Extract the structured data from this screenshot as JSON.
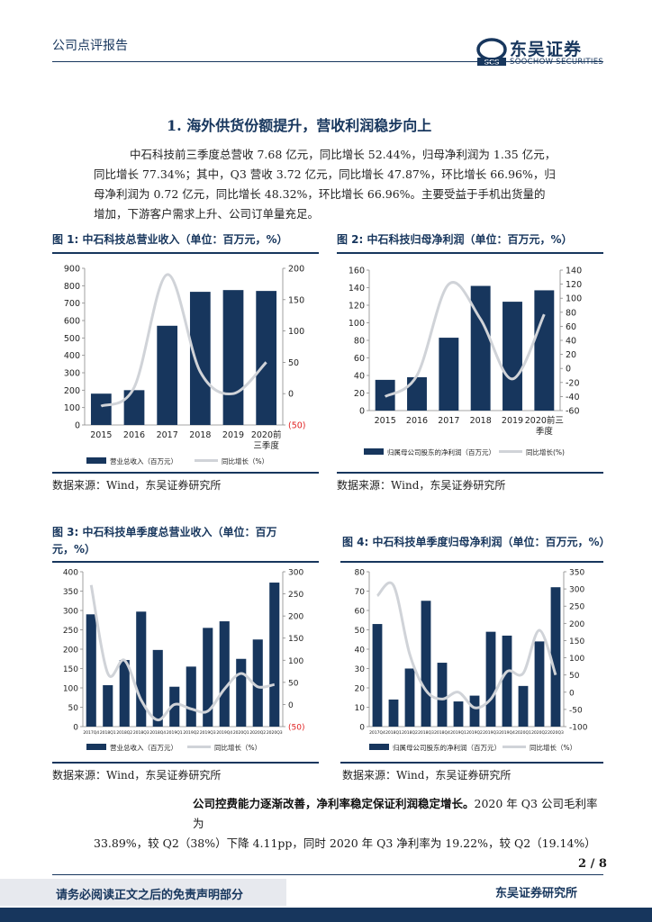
{
  "header": {
    "report_type": "公司点评报告",
    "logo_cn": "东吴证券",
    "logo_en": "SOOCHOW SECURITIES",
    "logo_mark": "SCS"
  },
  "section": {
    "title": "1.  海外供货份额提升，营收利润稳步向上",
    "paragraph": [
      "中石科技前三季度总营收 7.68 亿元，同比增长 52.44%，归母净利润为 1.35 亿元，",
      "同比增长 77.34%；其中，Q3 营收 3.72 亿元，同比增长 47.87%，环比增长 66.96%，归",
      "母净利润为 0.72 亿元，同比增长 48.32%，环比增长 66.96%。主要受益于手机出货量的",
      "增加，下游客户需求上升、公司订单量充足。"
    ]
  },
  "figures": [
    {
      "title_line1": "图 1:  中石科技总营业收入（单位：百万元，%）",
      "title_line2": "",
      "source": "数据来源：Wind，东吴证券研究所"
    },
    {
      "title_line1": "图 2:  中石科技归母净利润（单位：百万元，%）",
      "title_line2": "",
      "source": "数据来源：Wind，东吴证券研究所"
    },
    {
      "title_line1": "图 3:  中石科技单季度总营业收入（单位：百万",
      "title_line2": "元，%）",
      "source": "数据来源：Wind，东吴证券研究所"
    },
    {
      "title_line1": "图 4:  中石科技单季度归母净利润（单位：百万元，%）",
      "title_line2": "",
      "source": "数据来源：Wind，东吴证券研究所"
    }
  ],
  "chart_data": [
    {
      "type": "bar",
      "title": "中石科技总营业收入（单位：百万元，%）",
      "categories": [
        "2015",
        "2016",
        "2017",
        "2018",
        "2019",
        "2020前三季度"
      ],
      "category_labels": [
        [
          "2015"
        ],
        [
          "2016"
        ],
        [
          "2017"
        ],
        [
          "2018"
        ],
        [
          "2019"
        ],
        [
          "2020前",
          "三季度"
        ]
      ],
      "series": [
        {
          "name": "营业总收入（百万元）",
          "axis": "left",
          "type": "bar",
          "values": [
            180,
            200,
            570,
            765,
            775,
            770
          ]
        },
        {
          "name": "同比增长（%）",
          "axis": "right",
          "type": "line",
          "values": [
            -20,
            10,
            190,
            35,
            0,
            50
          ]
        }
      ],
      "left_axis": {
        "min": 0,
        "max": 900,
        "ticks": [
          0,
          100,
          200,
          300,
          400,
          500,
          600,
          700,
          800,
          900
        ],
        "labels": [
          "0",
          "100",
          "200",
          "300",
          "400",
          "500",
          "600",
          "700",
          "800",
          "900"
        ]
      },
      "right_axis": {
        "min": -50,
        "max": 200,
        "ticks": [
          -50,
          0,
          50,
          100,
          150,
          200
        ],
        "labels": [
          "(50)",
          "0",
          "50",
          "100",
          "150",
          "200"
        ],
        "red_ticks": [
          -50
        ]
      },
      "legend": [
        "营业总收入（百万元）",
        "同比增长（%）"
      ]
    },
    {
      "type": "bar",
      "title": "中石科技归母净利润（单位：百万元，%）",
      "categories": [
        "2015",
        "2016",
        "2017",
        "2018",
        "2019",
        "2020前三季度"
      ],
      "category_labels": [
        [
          "2015"
        ],
        [
          "2016"
        ],
        [
          "2017"
        ],
        [
          "2018"
        ],
        [
          "2019"
        ],
        [
          "2020前三",
          "季度"
        ]
      ],
      "series": [
        {
          "name": "归属母公司股东的净利润（百万元）",
          "axis": "left",
          "type": "bar",
          "values": [
            35,
            38,
            83,
            142,
            124,
            137
          ]
        },
        {
          "name": "同比增长(%)",
          "axis": "right",
          "type": "line",
          "values": [
            -40,
            -10,
            120,
            70,
            -15,
            77
          ]
        }
      ],
      "left_axis": {
        "min": 0,
        "max": 160,
        "ticks": [
          0,
          20,
          40,
          60,
          80,
          100,
          120,
          140,
          160
        ],
        "labels": [
          "0",
          "20",
          "40",
          "60",
          "80",
          "100",
          "120",
          "140",
          "160"
        ]
      },
      "right_axis": {
        "min": -60,
        "max": 140,
        "ticks": [
          -60,
          -40,
          -20,
          0,
          20,
          40,
          60,
          80,
          100,
          120,
          140
        ],
        "labels": [
          "-60",
          "-40",
          "-20",
          "0",
          "20",
          "40",
          "60",
          "80",
          "100",
          "120",
          "140"
        ],
        "red_ticks": []
      },
      "legend": [
        "归属母公司股东的净利润（百万元）",
        "同比增长(%)"
      ]
    },
    {
      "type": "bar",
      "title": "中石科技单季度总营业收入（单位：百万元，%）",
      "categories": [
        "2017Q4",
        "2018Q1",
        "2018Q2",
        "2018Q3",
        "2018Q4",
        "2019Q1",
        "2019Q2",
        "2019Q3",
        "2019Q4",
        "2020Q1",
        "2020Q2",
        "2020Q3"
      ],
      "category_labels": [
        [
          "2017Q4"
        ],
        [
          "2018Q1"
        ],
        [
          "2018Q2"
        ],
        [
          "2018Q3"
        ],
        [
          "2018Q4"
        ],
        [
          "2019Q1"
        ],
        [
          "2019Q2"
        ],
        [
          "2019Q3"
        ],
        [
          "2019Q4"
        ],
        [
          "2020Q1"
        ],
        [
          "2020Q2"
        ],
        [
          "2020Q3"
        ]
      ],
      "series": [
        {
          "name": "营业总收入（百万元）",
          "axis": "left",
          "type": "bar",
          "values": [
            290,
            107,
            172,
            297,
            198,
            103,
            155,
            255,
            272,
            175,
            225,
            372
          ]
        },
        {
          "name": "同比增长（%）",
          "axis": "right",
          "type": "line",
          "values": [
            270,
            70,
            100,
            10,
            -35,
            0,
            -10,
            -15,
            35,
            70,
            40,
            45
          ]
        }
      ],
      "left_axis": {
        "min": 0,
        "max": 400,
        "ticks": [
          0,
          50,
          100,
          150,
          200,
          250,
          300,
          350,
          400
        ],
        "labels": [
          "0",
          "50",
          "100",
          "150",
          "200",
          "250",
          "300",
          "350",
          "400"
        ]
      },
      "right_axis": {
        "min": -50,
        "max": 300,
        "ticks": [
          -50,
          0,
          50,
          100,
          150,
          200,
          250,
          300
        ],
        "labels": [
          "(50)",
          "0",
          "50",
          "100",
          "150",
          "200",
          "250",
          "300"
        ],
        "red_ticks": [
          -50
        ]
      },
      "legend": [
        "营业总收入（百万元）",
        "同比增长（%）"
      ]
    },
    {
      "type": "bar",
      "title": "中石科技单季度归母净利润（单位：百万元，%）",
      "categories": [
        "2017Q4",
        "2018Q1",
        "2018Q2",
        "2018Q3",
        "2018Q4",
        "2019Q1",
        "2019Q2",
        "2019Q3",
        "2019Q4",
        "2020Q1",
        "2020Q2",
        "2020Q3"
      ],
      "category_labels": [
        [
          "2017Q4"
        ],
        [
          "2018Q1"
        ],
        [
          "2018Q2"
        ],
        [
          "2018Q3"
        ],
        [
          "2018Q4"
        ],
        [
          "2019Q1"
        ],
        [
          "2019Q2"
        ],
        [
          "2019Q3"
        ],
        [
          "2019Q4"
        ],
        [
          "2020Q1"
        ],
        [
          "2020Q2"
        ],
        [
          "2020Q3"
        ]
      ],
      "series": [
        {
          "name": "归属母公司股东的净利润（百万元）",
          "axis": "left",
          "type": "bar",
          "values": [
            53,
            14,
            30,
            65,
            33,
            13,
            16,
            49,
            47,
            21,
            44,
            72
          ]
        },
        {
          "name": "同比增长（%）",
          "axis": "right",
          "type": "line",
          "values": [
            280,
            310,
            110,
            5,
            -20,
            0,
            -45,
            -20,
            60,
            55,
            180,
            50
          ]
        }
      ],
      "left_axis": {
        "min": 0,
        "max": 80,
        "ticks": [
          0,
          10,
          20,
          30,
          40,
          50,
          60,
          70,
          80
        ],
        "labels": [
          "0",
          "10",
          "20",
          "30",
          "40",
          "50",
          "60",
          "70",
          "80"
        ]
      },
      "right_axis": {
        "min": -100,
        "max": 350,
        "ticks": [
          -100,
          -50,
          0,
          50,
          100,
          150,
          200,
          250,
          300,
          350
        ],
        "labels": [
          "-100",
          "-50",
          "0",
          "50",
          "100",
          "150",
          "200",
          "250",
          "300",
          "350"
        ],
        "red_ticks": []
      },
      "legend": [
        "归属母公司股东的净利润（百万元）",
        "同比增长（%）"
      ]
    }
  ],
  "conclusion": {
    "bold": "公司控费能力逐渐改善，净利率稳定保证利润稳定增长。",
    "rest": "2020 年 Q3 公司毛利率为",
    "line2": "33.89%，较 Q2（38%）下降 4.11pp，同时 2020 年 Q3 净利率为 19.22%，较 Q2（19.14%）"
  },
  "footer": {
    "page": "2 / 8",
    "disclaimer": "请务必阅读正文之后的免责声明部分",
    "institute": "东吴证券研究所"
  },
  "colors": {
    "navy": "#17365d",
    "line": "#d0d3d8",
    "red": "#e02020"
  }
}
